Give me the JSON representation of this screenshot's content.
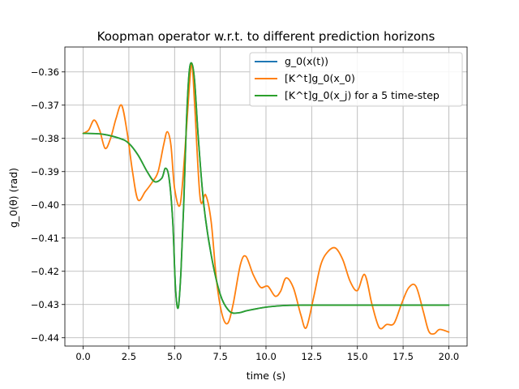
{
  "chart_data": {
    "type": "line",
    "title": "Koopman operator w.r.t. to different prediction horizons",
    "xlabel": "time (s)",
    "ylabel": "g_0(θ) (rad)",
    "xlim": [
      -1.0,
      21.0
    ],
    "ylim": [
      -0.4425,
      -0.3525
    ],
    "xticks": [
      0.0,
      2.5,
      5.0,
      7.5,
      10.0,
      12.5,
      15.0,
      17.5,
      20.0
    ],
    "xtick_labels": [
      "0.0",
      "2.5",
      "5.0",
      "7.5",
      "10.0",
      "12.5",
      "15.0",
      "17.5",
      "20.0"
    ],
    "yticks": [
      -0.36,
      -0.37,
      -0.38,
      -0.39,
      -0.4,
      -0.41,
      -0.42,
      -0.43,
      -0.44
    ],
    "ytick_labels": [
      "−0.36",
      "−0.37",
      "−0.38",
      "−0.39",
      "−0.40",
      "−0.41",
      "−0.42",
      "−0.43",
      "−0.44"
    ],
    "grid": true,
    "legend_position": "top-right",
    "series": [
      {
        "name": "g_0(x(t))",
        "color": "#1f77b4",
        "points": [
          [
            0,
            -0.3785
          ],
          [
            1,
            -0.3787
          ],
          [
            2,
            -0.38
          ],
          [
            2.5,
            -0.3815
          ],
          [
            3,
            -0.385
          ],
          [
            3.5,
            -0.39
          ],
          [
            3.9,
            -0.393
          ],
          [
            4.3,
            -0.392
          ],
          [
            4.5,
            -0.389
          ],
          [
            4.7,
            -0.392
          ],
          [
            4.9,
            -0.405
          ],
          [
            5.05,
            -0.425
          ],
          [
            5.2,
            -0.431
          ],
          [
            5.35,
            -0.42
          ],
          [
            5.5,
            -0.4
          ],
          [
            5.65,
            -0.375
          ],
          [
            5.8,
            -0.36
          ],
          [
            5.95,
            -0.3575
          ],
          [
            6.1,
            -0.363
          ],
          [
            6.3,
            -0.38
          ],
          [
            6.6,
            -0.4
          ],
          [
            7.0,
            -0.415
          ],
          [
            7.5,
            -0.427
          ],
          [
            8.0,
            -0.432
          ],
          [
            8.5,
            -0.4325
          ],
          [
            9.0,
            -0.4318
          ],
          [
            10.0,
            -0.4308
          ],
          [
            11.0,
            -0.4303
          ],
          [
            12.0,
            -0.4302
          ],
          [
            14.0,
            -0.4302
          ],
          [
            16.0,
            -0.4302
          ],
          [
            18.0,
            -0.4302
          ],
          [
            20.0,
            -0.4302
          ]
        ]
      },
      {
        "name": "[K^t]g_0(x_0)",
        "color": "#ff7f0e",
        "points": [
          [
            0,
            -0.3785
          ],
          [
            0.3,
            -0.3775
          ],
          [
            0.6,
            -0.3745
          ],
          [
            0.9,
            -0.3775
          ],
          [
            1.2,
            -0.383
          ],
          [
            1.5,
            -0.38
          ],
          [
            1.8,
            -0.374
          ],
          [
            2.1,
            -0.37
          ],
          [
            2.4,
            -0.378
          ],
          [
            2.7,
            -0.39
          ],
          [
            3.0,
            -0.3985
          ],
          [
            3.4,
            -0.396
          ],
          [
            3.8,
            -0.393
          ],
          [
            4.1,
            -0.39
          ],
          [
            4.4,
            -0.382
          ],
          [
            4.6,
            -0.378
          ],
          [
            4.8,
            -0.382
          ],
          [
            5.0,
            -0.395
          ],
          [
            5.3,
            -0.4
          ],
          [
            5.55,
            -0.385
          ],
          [
            5.8,
            -0.365
          ],
          [
            5.95,
            -0.3575
          ],
          [
            6.1,
            -0.37
          ],
          [
            6.4,
            -0.398
          ],
          [
            6.7,
            -0.397
          ],
          [
            7.0,
            -0.405
          ],
          [
            7.3,
            -0.423
          ],
          [
            7.6,
            -0.433
          ],
          [
            7.9,
            -0.4357
          ],
          [
            8.2,
            -0.43
          ],
          [
            8.6,
            -0.418
          ],
          [
            8.9,
            -0.4155
          ],
          [
            9.3,
            -0.421
          ],
          [
            9.7,
            -0.4248
          ],
          [
            10.1,
            -0.4245
          ],
          [
            10.5,
            -0.4275
          ],
          [
            10.8,
            -0.426
          ],
          [
            11.1,
            -0.422
          ],
          [
            11.5,
            -0.425
          ],
          [
            11.9,
            -0.433
          ],
          [
            12.2,
            -0.437
          ],
          [
            12.6,
            -0.428
          ],
          [
            13.0,
            -0.418
          ],
          [
            13.4,
            -0.414
          ],
          [
            13.8,
            -0.413
          ],
          [
            14.2,
            -0.4165
          ],
          [
            14.6,
            -0.423
          ],
          [
            15.0,
            -0.4258
          ],
          [
            15.4,
            -0.421
          ],
          [
            15.8,
            -0.43
          ],
          [
            16.2,
            -0.437
          ],
          [
            16.6,
            -0.436
          ],
          [
            17.0,
            -0.4357
          ],
          [
            17.4,
            -0.43
          ],
          [
            17.8,
            -0.425
          ],
          [
            18.2,
            -0.4245
          ],
          [
            18.6,
            -0.432
          ],
          [
            18.9,
            -0.438
          ],
          [
            19.2,
            -0.4388
          ],
          [
            19.5,
            -0.4375
          ],
          [
            20.0,
            -0.4383
          ]
        ]
      },
      {
        "name": "[K^t]g_0(x_j) for a 5 time-step",
        "color": "#2ca02c",
        "points": [
          [
            0,
            -0.3785
          ],
          [
            1,
            -0.3787
          ],
          [
            2,
            -0.38
          ],
          [
            2.5,
            -0.3815
          ],
          [
            3,
            -0.385
          ],
          [
            3.5,
            -0.39
          ],
          [
            3.9,
            -0.393
          ],
          [
            4.3,
            -0.392
          ],
          [
            4.5,
            -0.389
          ],
          [
            4.7,
            -0.392
          ],
          [
            4.9,
            -0.405
          ],
          [
            5.05,
            -0.425
          ],
          [
            5.2,
            -0.431
          ],
          [
            5.35,
            -0.42
          ],
          [
            5.5,
            -0.4
          ],
          [
            5.65,
            -0.375
          ],
          [
            5.8,
            -0.36
          ],
          [
            5.95,
            -0.3575
          ],
          [
            6.1,
            -0.363
          ],
          [
            6.3,
            -0.38
          ],
          [
            6.6,
            -0.4
          ],
          [
            7.0,
            -0.415
          ],
          [
            7.5,
            -0.427
          ],
          [
            8.0,
            -0.432
          ],
          [
            8.5,
            -0.4325
          ],
          [
            9.0,
            -0.4318
          ],
          [
            10.0,
            -0.4308
          ],
          [
            11.0,
            -0.4303
          ],
          [
            12.0,
            -0.4302
          ],
          [
            14.0,
            -0.4302
          ],
          [
            16.0,
            -0.4302
          ],
          [
            18.0,
            -0.4302
          ],
          [
            20.0,
            -0.4302
          ]
        ]
      }
    ]
  }
}
